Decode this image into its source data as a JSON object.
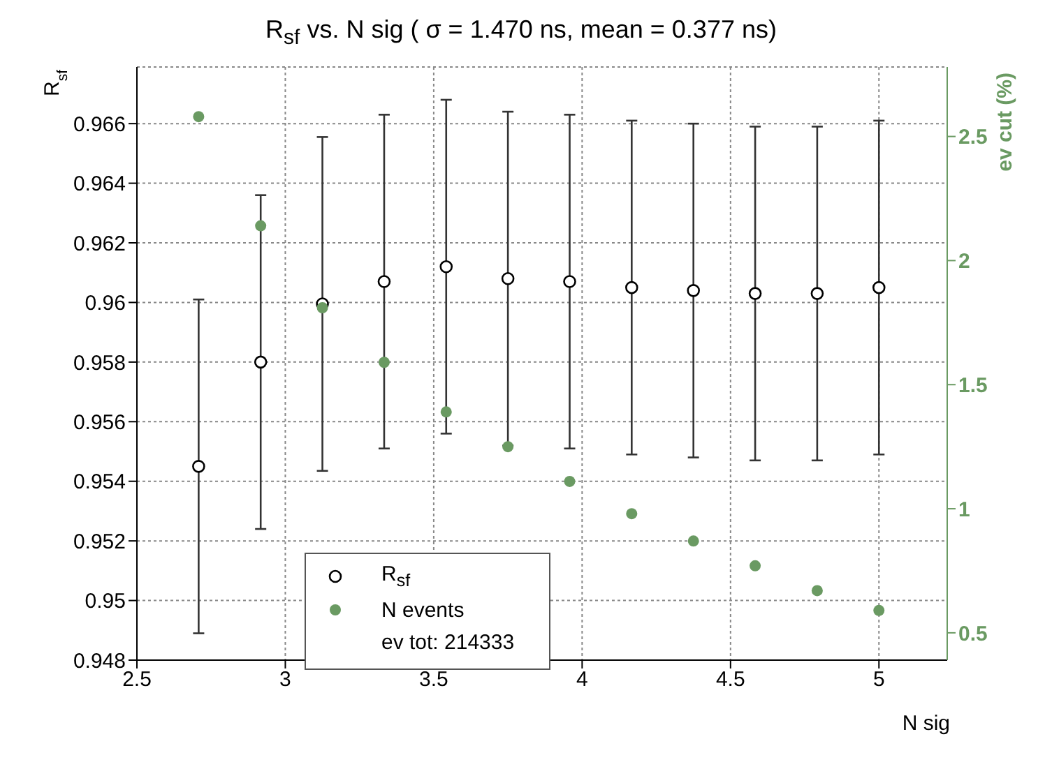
{
  "chart_data": {
    "type": "scatter",
    "title": "R$_{sf}$ vs. N sig ( σ = 1.470 ns, mean = 0.377 ns)",
    "xlabel": "N sig",
    "ylabel": "R$_{sf}$",
    "y2label": "ev cut (%)",
    "x": [
      2.708,
      2.917,
      3.125,
      3.333,
      3.542,
      3.75,
      3.958,
      4.167,
      4.375,
      4.583,
      4.792,
      5.0
    ],
    "series": [
      {
        "name": "R$_{sf}$",
        "color": "#000000",
        "values": [
          0.9545,
          0.958,
          0.95995,
          0.9607,
          0.9612,
          0.9608,
          0.9607,
          0.9605,
          0.9604,
          0.9603,
          0.9603,
          0.9605
        ],
        "errors": [
          0.0056,
          0.0056,
          0.0056,
          0.0056,
          0.0056,
          0.0056,
          0.0056,
          0.0056,
          0.0056,
          0.0056,
          0.0056,
          0.0056
        ]
      },
      {
        "name": "N events",
        "color": "#6a9a62",
        "axis": "y2",
        "values": [
          2.58,
          2.14,
          1.81,
          1.59,
          1.39,
          1.25,
          1.11,
          0.98,
          0.87,
          0.77,
          0.67,
          0.59
        ]
      }
    ],
    "xlim": [
      2.5,
      5.23
    ],
    "xticks": [
      2.5,
      3,
      3.5,
      4,
      4.5,
      5
    ],
    "ylim": [
      0.948,
      0.9679
    ],
    "yticks": [
      0.948,
      0.95,
      0.952,
      0.954,
      0.956,
      0.958,
      0.96,
      0.962,
      0.964,
      0.966
    ],
    "y2lim": [
      0.39,
      2.78
    ],
    "y2ticks": [
      0.5,
      1,
      1.5,
      2,
      2.5
    ],
    "grid": true,
    "legend": "bottom",
    "marker": "circle",
    "annotations": [
      "ev tot: 214333"
    ]
  }
}
